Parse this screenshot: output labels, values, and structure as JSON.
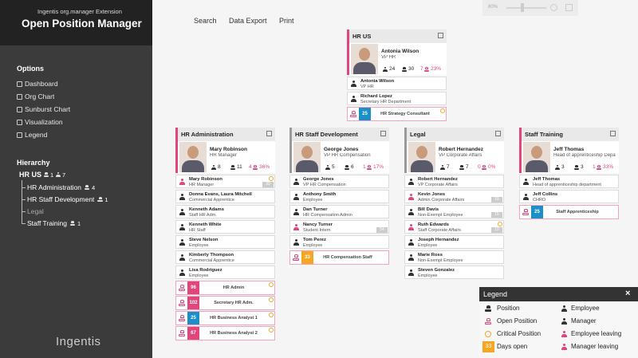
{
  "sidebar": {
    "extension": "Ingentis org.manager Extension",
    "title": "Open Position Manager",
    "options_heading": "Options",
    "options": [
      "Dashboard",
      "Org Chart",
      "Sunburst Chart",
      "Visualization",
      "Legend"
    ],
    "hierarchy_heading": "Hierarchy",
    "tree": {
      "label": "HR US",
      "positions": "1",
      "employees": "7",
      "children": [
        {
          "label": "HR Administration",
          "positions": "4"
        },
        {
          "label": "HR Staff Development",
          "positions": "1"
        },
        {
          "label": "Legal"
        },
        {
          "label": "Staff Training",
          "positions": "1"
        }
      ]
    },
    "logo": "Ingentis"
  },
  "toolbar": {
    "zoom": "80%",
    "menu": [
      "Search",
      "Data Export",
      "Print"
    ]
  },
  "units": [
    {
      "name": "HR US",
      "color": "#e0457b",
      "manager": {
        "name": "Antonia Wilson",
        "title": "VP HR"
      },
      "stats": {
        "employees": "24",
        "positions": "30",
        "open": "7",
        "open_percent": "23%"
      },
      "staff": [
        {
          "name": "Antonia Wilson",
          "title": "VP HR"
        },
        {
          "name": "Richard Lopez",
          "title": "Secretary HR Department"
        }
      ],
      "open_positions": [
        {
          "days": "25",
          "label": "HR Strategy Consultant",
          "color": "#1a8fc9",
          "critical": true
        }
      ]
    },
    {
      "name": "HR Administration",
      "color": "#e0457b",
      "manager": {
        "name": "Mary Robinson",
        "title": "HR Manager"
      },
      "stats": {
        "employees": "8",
        "positions": "11",
        "open": "4",
        "open_percent": "36%"
      },
      "staff": [
        {
          "name": "Mary Robinson",
          "title": "HR Manager",
          "leaving": true,
          "critical": true,
          "days": "30"
        },
        {
          "name": "Donna Evans, Laura Mitchell",
          "title": "Commercial Apprentice"
        },
        {
          "name": "Kenneth Adams",
          "title": "Staff HR Adm."
        },
        {
          "name": "Kenneth White",
          "title": "HR Staff"
        },
        {
          "name": "Steve Nelson",
          "title": "Employee"
        },
        {
          "name": "Kimberly Thompson",
          "title": "Commercial Apprentice"
        },
        {
          "name": "Lisa Rodriguez",
          "title": "Employee"
        }
      ],
      "open_positions": [
        {
          "days": "96",
          "label": "HR Admin",
          "color": "#e0457b",
          "critical": true
        },
        {
          "days": "102",
          "label": "Secretary HR Adm.",
          "color": "#e0457b",
          "critical": true
        },
        {
          "days": "25",
          "label": "HR Business Analyst 1",
          "color": "#1a8fc9",
          "critical": true
        },
        {
          "days": "67",
          "label": "HR Business Analyst 2",
          "color": "#e0457b",
          "critical": true
        }
      ]
    },
    {
      "name": "HR Staff Development",
      "color": "#9a9a9a",
      "manager": {
        "name": "George Jones",
        "title": "VP HR Compensation"
      },
      "stats": {
        "employees": "5",
        "positions": "6",
        "open": "1",
        "open_percent": "17%"
      },
      "staff": [
        {
          "name": "George Jones",
          "title": "VP HR Compensation"
        },
        {
          "name": "Anthony Smith",
          "title": "Employee"
        },
        {
          "name": "Dan Turner",
          "title": "HR Compensation Admin"
        },
        {
          "name": "Nancy Turner",
          "title": "Student Intern",
          "leaving": true,
          "days": "54"
        },
        {
          "name": "Tom Perez",
          "title": "Employee"
        }
      ],
      "open_positions": [
        {
          "days": "33",
          "label": "HR Compensation Staff",
          "color": "#f5a623"
        }
      ]
    },
    {
      "name": "Legal",
      "color": "#9a9a9a",
      "manager": {
        "name": "Robert Hernandez",
        "title": "VP Corporate Affairs"
      },
      "stats": {
        "employees": "7",
        "positions": "7",
        "open": "0",
        "open_percent": "0%"
      },
      "staff": [
        {
          "name": "Robert Hernandez",
          "title": "VP Corporate Affairs"
        },
        {
          "name": "Kevin Jones",
          "title": "Admin Corporate Affairs",
          "leaving": true,
          "days": "15"
        },
        {
          "name": "Bill Davis",
          "title": "Non-Exempt Employee",
          "days": "15"
        },
        {
          "name": "Ruth Edwards",
          "title": "Staff Corporate Affairs",
          "leaving": true,
          "critical": true,
          "days": "15"
        },
        {
          "name": "Joseph Hernandez",
          "title": "Employee"
        },
        {
          "name": "Marie Ross",
          "title": "Non-Exempt Employee"
        },
        {
          "name": "Steven Gonzalez",
          "title": "Employee"
        }
      ],
      "open_positions": []
    },
    {
      "name": "Staff Training",
      "color": "#e0457b",
      "manager": {
        "name": "Jeff Thomas",
        "title": "Head of apprenticeship Depa"
      },
      "stats": {
        "employees": "3",
        "positions": "3",
        "open": "1",
        "open_percent": "33%"
      },
      "staff": [
        {
          "name": "Jeff Thomas",
          "title": "Head of apprenticeship department"
        },
        {
          "name": "Jeff Collins",
          "title": "CHRO"
        }
      ],
      "open_positions": [
        {
          "days": "25",
          "label": "Staff Apprenticeship",
          "color": "#1a8fc9"
        }
      ]
    }
  ],
  "legend": {
    "title": "Legend",
    "close": "×",
    "left": [
      "Position",
      "Open Position",
      "Critical Position",
      "Days open"
    ],
    "days_sample": "33",
    "right": [
      "Employee",
      "Manager",
      "Employee leaving",
      "Manager leaving"
    ]
  }
}
